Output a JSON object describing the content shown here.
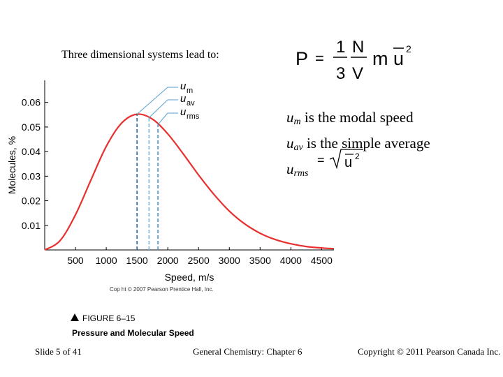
{
  "intro_text": "Three dimensional systems lead to:",
  "legend": {
    "um": {
      "base": "u",
      "sub": "m",
      "rest": " is the modal speed"
    },
    "uav": {
      "base": "u",
      "sub": "av",
      "rest": " is the simple average"
    },
    "urms": {
      "base": "u",
      "sub": "rms",
      "rest": ""
    }
  },
  "figure": {
    "label": "FIGURE 6–15",
    "title": "Pressure and Molecular Speed",
    "copyright": "Cop     ht © 2007 Pearson Prentice Hall, Inc."
  },
  "footer": {
    "slide": "Slide 5 of 41",
    "course": "General Chemistry: Chapter 6",
    "copyright": "Copyright © 2011 Pearson Canada Inc."
  },
  "formula": {
    "lhs": "P",
    "eq": "=",
    "frac1_num": "1",
    "frac1_den": "3",
    "frac2_num": "N",
    "frac2_den": "V",
    "m": "m",
    "u": "u",
    "exp": "2",
    "rms_eq": "=",
    "rms_u": "u",
    "rms_exp": "2"
  },
  "chart_data": {
    "type": "line",
    "title": "",
    "xlabel": "Speed, m/s",
    "ylabel": "Molecules, %",
    "xlim": [
      0,
      4700
    ],
    "ylim": [
      0,
      0.069
    ],
    "xticks": [
      500,
      1000,
      1500,
      2000,
      2500,
      3000,
      3500,
      4000,
      4500
    ],
    "yticks": [
      0.01,
      0.02,
      0.03,
      0.04,
      0.05,
      0.06
    ],
    "ytick_labels": [
      "0.01",
      "0.02",
      "0.03",
      "0.04",
      "0.05",
      "0.06"
    ],
    "series": [
      {
        "name": "Maxwell speed distribution",
        "color": "#e8302f",
        "x": [
          0,
          250,
          500,
          750,
          1000,
          1250,
          1500,
          1750,
          2000,
          2250,
          2500,
          2750,
          3000,
          3250,
          3500,
          3750,
          4000,
          4250,
          4500,
          4700
        ],
        "y": [
          0.0,
          0.0038,
          0.0143,
          0.0284,
          0.0421,
          0.0516,
          0.0552,
          0.0532,
          0.0472,
          0.0391,
          0.0305,
          0.0226,
          0.0158,
          0.0106,
          0.0068,
          0.0042,
          0.0025,
          0.0014,
          0.0008,
          0.0005
        ]
      }
    ],
    "markers": [
      {
        "name": "u",
        "sub": "m",
        "x": 1500,
        "y": 0.0552,
        "color": "#1a5fa8"
      },
      {
        "name": "u",
        "sub": "av",
        "x": 1695,
        "y": 0.0538,
        "color": "#6fb3d8"
      },
      {
        "name": "u",
        "sub": "rms",
        "x": 1840,
        "y": 0.051,
        "color": "#3a8cc4"
      }
    ]
  }
}
